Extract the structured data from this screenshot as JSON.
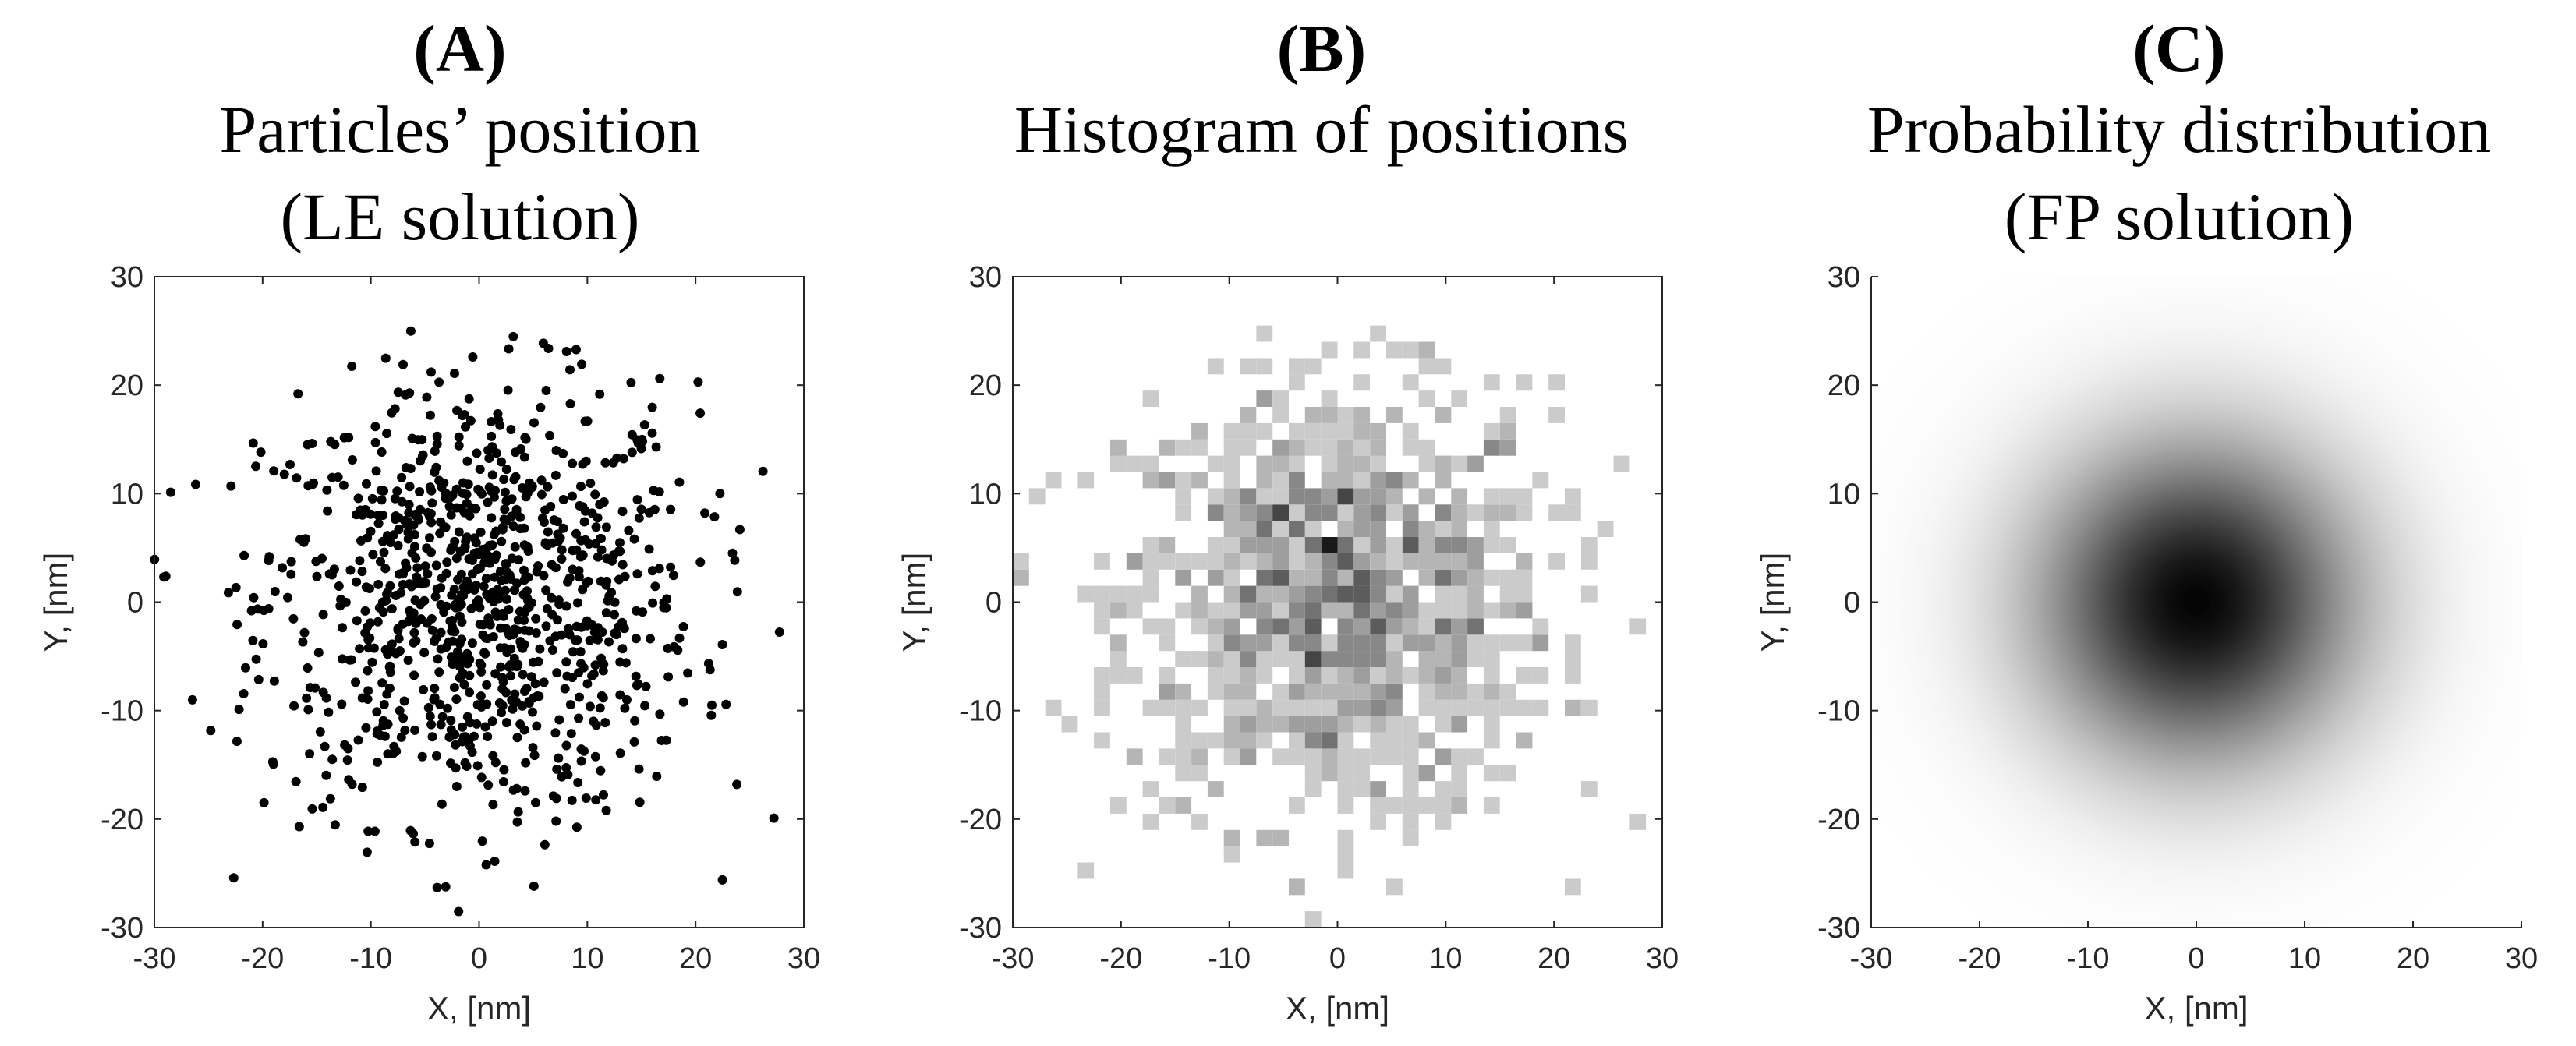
{
  "chart_data": [
    {
      "panel": "(A)",
      "title_lines": [
        "Particles’ position",
        "(LE solution)"
      ],
      "type": "scatter",
      "xlabel": "X, [nm]",
      "ylabel": "Y, [nm]",
      "xlim": [
        -30,
        30
      ],
      "ylim": [
        -30,
        30
      ],
      "xticks": [
        "-30",
        "-20",
        "-10",
        "0",
        "10",
        "20",
        "30"
      ],
      "yticks": [
        "30",
        "20",
        "10",
        "0",
        "-10",
        "-20",
        "-30"
      ],
      "marker_color": "#000000",
      "distribution": "isotropic 2D Gaussian, ~1000 particles, sigma ~ 10 nm, centered at (0,0)"
    },
    {
      "panel": "(B)",
      "title_lines": [
        "Histogram of positions"
      ],
      "type": "heatmap",
      "xlabel": "X, [nm]",
      "ylabel": "Y, [nm]",
      "xlim": [
        -30,
        30
      ],
      "ylim": [
        -30,
        30
      ],
      "xticks": [
        "-30",
        "-20",
        "-10",
        "0",
        "10",
        "20",
        "30"
      ],
      "yticks": [
        "30",
        "20",
        "10",
        "0",
        "-10",
        "-20",
        "-30"
      ],
      "bin_width": 1.5,
      "colormap": "white to black (count)"
    },
    {
      "panel": "(C)",
      "title_lines": [
        "Probability distribution",
        "(FP solution)"
      ],
      "type": "heatmap",
      "xlabel": "X, [nm]",
      "ylabel": "Y, [nm]",
      "xlim": [
        -30,
        30
      ],
      "ylim": [
        -30,
        30
      ],
      "xticks": [
        "-30",
        "-20",
        "-10",
        "0",
        "10",
        "20",
        "30"
      ],
      "yticks": [
        "30",
        "20",
        "10",
        "0",
        "-10",
        "-20",
        "-30"
      ],
      "colormap": "white to black (probability)",
      "peak_at": [
        0,
        0
      ],
      "sigma": 10
    }
  ]
}
